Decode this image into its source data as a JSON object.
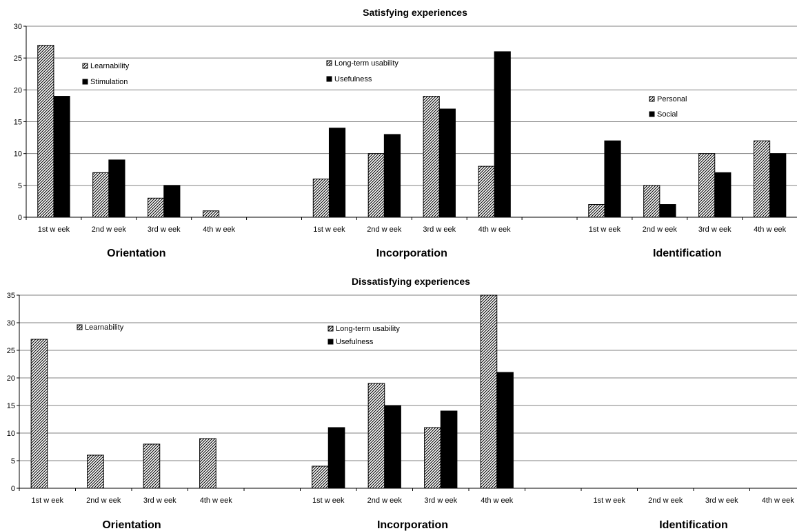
{
  "chart_data": [
    {
      "type": "bar",
      "title": "Satisfying experiences",
      "ylim": [
        0,
        30
      ],
      "yticks": [
        0,
        5,
        10,
        15,
        20,
        25,
        30
      ],
      "grid": true,
      "groups": [
        {
          "label": "Orientation",
          "categories": [
            "1st w eek",
            "2nd w eek",
            "3rd w eek",
            "4th w eek"
          ],
          "series": [
            {
              "name": "Learnability",
              "pattern": "hatched",
              "values": [
                27,
                7,
                3,
                1
              ]
            },
            {
              "name": "Stimulation",
              "pattern": "solid",
              "values": [
                19,
                9,
                5,
                0
              ]
            }
          ]
        },
        {
          "label": "Incorporation",
          "categories": [
            "1st w eek",
            "2nd w eek",
            "3rd w eek",
            "4th w eek"
          ],
          "series": [
            {
              "name": "Long-term usability",
              "pattern": "hatched",
              "values": [
                6,
                10,
                19,
                8
              ]
            },
            {
              "name": "Usefulness",
              "pattern": "solid",
              "values": [
                14,
                13,
                17,
                26
              ]
            }
          ]
        },
        {
          "label": "Identification",
          "categories": [
            "1st w eek",
            "2nd w eek",
            "3rd w eek",
            "4th w eek"
          ],
          "series": [
            {
              "name": "Personal",
              "pattern": "hatched",
              "values": [
                2,
                5,
                10,
                12
              ]
            },
            {
              "name": "Social",
              "pattern": "solid",
              "values": [
                12,
                2,
                7,
                10
              ]
            }
          ]
        }
      ]
    },
    {
      "type": "bar",
      "title": "Dissatisfying experiences",
      "ylim": [
        0,
        35
      ],
      "yticks": [
        0,
        5,
        10,
        15,
        20,
        25,
        30,
        35
      ],
      "grid": true,
      "groups": [
        {
          "label": "Orientation",
          "categories": [
            "1st w eek",
            "2nd w eek",
            "3rd w eek",
            "4th w eek"
          ],
          "series": [
            {
              "name": "Learnability",
              "pattern": "hatched",
              "values": [
                27,
                6,
                8,
                9
              ]
            }
          ]
        },
        {
          "label": "Incorporation",
          "categories": [
            "1st w eek",
            "2nd w eek",
            "3rd w eek",
            "4th w eek"
          ],
          "series": [
            {
              "name": "Long-term usability",
              "pattern": "hatched",
              "values": [
                4,
                19,
                11,
                35
              ]
            },
            {
              "name": "Usefulness",
              "pattern": "solid",
              "values": [
                11,
                15,
                14,
                21
              ]
            }
          ]
        },
        {
          "label": "Identification",
          "categories": [
            "1st w eek",
            "2nd w eek",
            "3rd w eek",
            "4th w eek"
          ],
          "series": []
        }
      ]
    }
  ]
}
